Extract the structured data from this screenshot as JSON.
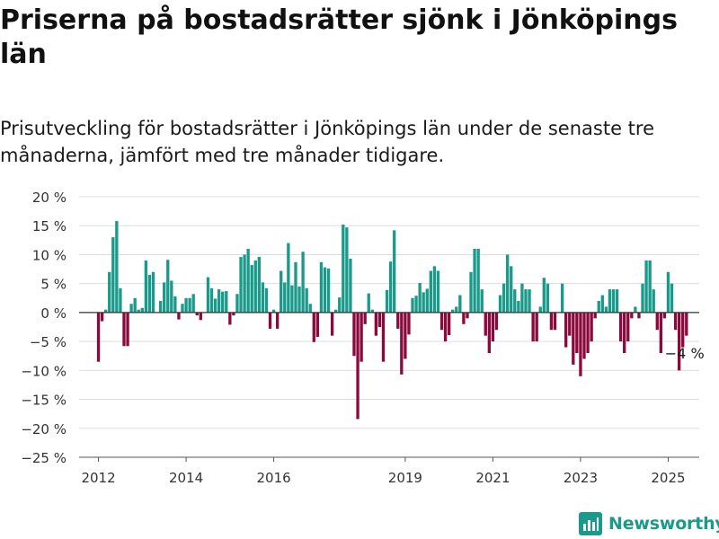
{
  "title": "Priserna på bostadsrätter sjönk i Jönköpings län",
  "subtitle": "Prisutveckling för bostadsrätter i Jönköpings län under de senaste tre månaderna, jämfört med tre månader tidigare.",
  "brand": {
    "name": "Newsworthy",
    "icon": "bar-chart-icon",
    "color": "#1a9a8a"
  },
  "colors": {
    "positive": "#1a9a8a",
    "negative": "#8b0a3e",
    "grid": "#dddddd",
    "zero_line": "#333333"
  },
  "chart_data": {
    "type": "bar",
    "title": "Priserna på bostadsrätter sjönk i Jönköpings län",
    "subtitle": "Prisutveckling för bostadsrätter i Jönköpings län under de senaste tre månaderna, jämfört med tre månader tidigare.",
    "xlabel": "",
    "ylabel": "",
    "ylim": [
      -25,
      20
    ],
    "y_ticks": [
      20,
      15,
      10,
      5,
      0,
      -5,
      -10,
      -15,
      -20,
      -25
    ],
    "y_tick_labels": [
      "20 %",
      "15 %",
      "10 %",
      "5 %",
      "0 %",
      "−5 %",
      "−10 %",
      "−15 %",
      "−20 %",
      "−25 %"
    ],
    "x_tick_labels": [
      "2012",
      "2014",
      "2016",
      "2019",
      "2021",
      "2023",
      "2025"
    ],
    "x_tick_years": [
      2012,
      2014,
      2016,
      2019,
      2021,
      2023,
      2025
    ],
    "grid": true,
    "annotation": {
      "text": "−4 %",
      "at": "2025-06"
    },
    "series": [
      {
        "x": [
          "2012-01",
          "2012-02",
          "2012-03",
          "2012-04",
          "2012-05",
          "2012-06",
          "2012-07",
          "2012-08",
          "2012-09",
          "2012-10",
          "2012-11",
          "2012-12",
          "2013-01",
          "2013-02",
          "2013-03",
          "2013-04",
          "2013-05",
          "2013-06",
          "2013-07",
          "2013-08",
          "2013-09",
          "2013-10",
          "2013-11",
          "2013-12",
          "2014-01",
          "2014-02",
          "2014-03",
          "2014-04",
          "2014-05",
          "2014-06",
          "2014-07",
          "2014-08",
          "2014-09",
          "2014-10",
          "2014-11",
          "2014-12",
          "2015-01",
          "2015-02",
          "2015-03",
          "2015-04",
          "2015-05",
          "2015-06",
          "2015-07",
          "2015-08",
          "2015-09",
          "2015-10",
          "2015-11",
          "2015-12",
          "2016-01",
          "2016-02",
          "2016-03",
          "2016-04",
          "2016-05",
          "2016-06",
          "2016-07",
          "2016-08",
          "2016-09",
          "2016-10",
          "2016-11",
          "2016-12",
          "2017-01",
          "2017-02",
          "2017-03",
          "2017-04",
          "2017-05",
          "2017-06",
          "2017-07",
          "2017-08",
          "2017-09",
          "2017-10",
          "2017-11",
          "2017-12",
          "2018-01",
          "2018-02",
          "2018-03",
          "2018-04",
          "2018-05",
          "2018-06",
          "2018-07",
          "2018-08",
          "2018-09",
          "2018-10",
          "2018-11",
          "2018-12",
          "2019-01",
          "2019-02",
          "2019-03",
          "2019-04",
          "2019-05",
          "2019-06",
          "2019-07",
          "2019-08",
          "2019-09",
          "2019-10",
          "2019-11",
          "2019-12",
          "2020-01",
          "2020-02",
          "2020-03",
          "2020-04",
          "2020-05",
          "2020-06",
          "2020-07",
          "2020-08",
          "2020-09",
          "2020-10",
          "2020-11",
          "2020-12",
          "2021-01",
          "2021-02",
          "2021-03",
          "2021-04",
          "2021-05",
          "2021-06",
          "2021-07",
          "2021-08",
          "2021-09",
          "2021-10",
          "2021-11",
          "2021-12",
          "2022-01",
          "2022-02",
          "2022-03",
          "2022-04",
          "2022-05",
          "2022-06",
          "2022-07",
          "2022-08",
          "2022-09",
          "2022-10",
          "2022-11",
          "2022-12",
          "2023-01",
          "2023-02",
          "2023-03",
          "2023-04",
          "2023-05",
          "2023-06",
          "2023-07",
          "2023-08",
          "2023-09",
          "2023-10",
          "2023-11",
          "2023-12",
          "2024-01",
          "2024-02",
          "2024-03",
          "2024-04",
          "2024-05",
          "2024-06",
          "2024-07",
          "2024-08",
          "2024-09",
          "2024-10",
          "2024-11",
          "2024-12",
          "2025-01",
          "2025-02",
          "2025-03",
          "2025-04",
          "2025-05",
          "2025-06"
        ],
        "values": [
          -8.5,
          -1.5,
          0.5,
          7,
          13,
          15.8,
          4.2,
          -5.8,
          -5.8,
          1.5,
          2.5,
          0.5,
          0.8,
          9,
          6.5,
          7,
          0,
          2,
          5.2,
          9.1,
          5.5,
          2.8,
          -1.2,
          1.5,
          2.5,
          2.5,
          3.2,
          -0.5,
          -1.3,
          0,
          6.1,
          4.2,
          2.4,
          4,
          3.6,
          3.7,
          -2.1,
          -0.5,
          3.2,
          9.6,
          10,
          11,
          8.2,
          9,
          9.6,
          5.2,
          4.2,
          -2.8,
          0.5,
          -2.8,
          7.2,
          5.2,
          12,
          4.7,
          8.7,
          4.5,
          10.5,
          4.2,
          1.5,
          -5.1,
          -4.2,
          8.7,
          7.8,
          7.6,
          -4,
          0.5,
          2.6,
          15.2,
          14.7,
          9.3,
          -7.5,
          -18.4,
          -8.5,
          -2,
          3.3,
          0.5,
          -4,
          -2.5,
          -8.5,
          3.9,
          8.8,
          14.2,
          -2.8,
          -10.7,
          -8,
          -3.8,
          2.5,
          2.9,
          5.1,
          3.5,
          4.1,
          7.2,
          8,
          7.2,
          -3,
          -5,
          -3.9,
          0.5,
          1,
          3,
          -2,
          -1,
          7,
          11,
          11,
          4,
          -4,
          -7,
          -5,
          -3,
          3,
          5,
          10,
          8,
          4,
          2,
          5,
          4,
          4,
          -5,
          -5,
          1,
          6,
          5,
          -3,
          -3,
          0,
          5,
          -6,
          -4,
          -9,
          -7,
          -11,
          -8,
          -7,
          -5,
          -1,
          2,
          3,
          1,
          4,
          4,
          4,
          -5,
          -7,
          -5,
          -1,
          1,
          -1,
          5,
          9,
          9,
          4,
          -3,
          -7,
          -1,
          7,
          5,
          -3,
          -10,
          -6,
          -4
        ]
      }
    ]
  }
}
